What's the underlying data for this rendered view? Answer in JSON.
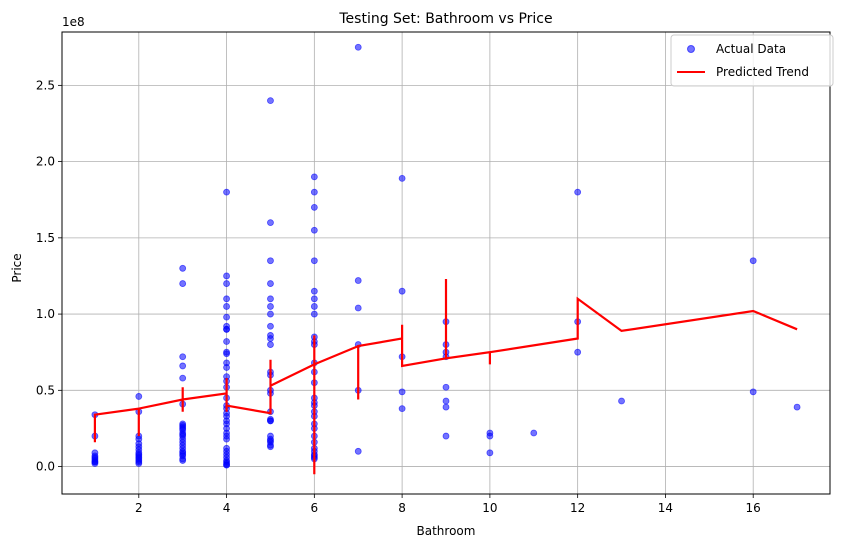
{
  "chart_data": {
    "type": "scatter",
    "title": "Testing Set: Bathroom vs Price",
    "xlabel": "Bathroom",
    "ylabel": "Price",
    "y_offset_label": "1e8",
    "xlim": [
      0.25,
      17.75
    ],
    "ylim": [
      -0.18,
      2.85
    ],
    "y_unit_multiplier": 100000000,
    "x_ticks": [
      2,
      4,
      6,
      8,
      10,
      12,
      14,
      16
    ],
    "x_tick_labels": [
      "2",
      "4",
      "6",
      "8",
      "10",
      "12",
      "14",
      "16"
    ],
    "y_ticks": [
      0.0,
      0.5,
      1.0,
      1.5,
      2.0,
      2.5
    ],
    "y_tick_labels": [
      "0.0",
      "0.5",
      "1.0",
      "1.5",
      "2.0",
      "2.5"
    ],
    "grid": true,
    "legend_position": "top-right",
    "colors": {
      "scatter": "#0000ff",
      "line": "#ff0000",
      "grid": "#b0b0b0"
    },
    "series": [
      {
        "name": "Actual Data",
        "kind": "scatter",
        "x": [
          1,
          1,
          1,
          1,
          1,
          1,
          1,
          1,
          1,
          1,
          2,
          2,
          2,
          2,
          2,
          2,
          2,
          2,
          2,
          2,
          2,
          2,
          2,
          2,
          2,
          3,
          3,
          3,
          3,
          3,
          3,
          3,
          3,
          3,
          3,
          3,
          3,
          3,
          3,
          3,
          3,
          3,
          3,
          3,
          3,
          3,
          3,
          3,
          3,
          4,
          4,
          4,
          4,
          4,
          4,
          4,
          4,
          4,
          4,
          4,
          4,
          4,
          4,
          4,
          4,
          4,
          4,
          4,
          4,
          4,
          4,
          4,
          4,
          4,
          4,
          4,
          4,
          4,
          4,
          4,
          4,
          4,
          4,
          4,
          4,
          4,
          5,
          5,
          5,
          5,
          5,
          5,
          5,
          5,
          5,
          5,
          5,
          5,
          5,
          5,
          5,
          5,
          5,
          5,
          5,
          5,
          5,
          5,
          5,
          5,
          5,
          6,
          6,
          6,
          6,
          6,
          6,
          6,
          6,
          6,
          6,
          6,
          6,
          6,
          6,
          6,
          6,
          6,
          6,
          6,
          6,
          6,
          6,
          6,
          6,
          6,
          6,
          6,
          6,
          6,
          6,
          7,
          7,
          7,
          7,
          7,
          7,
          8,
          8,
          8,
          8,
          8,
          9,
          9,
          9,
          9,
          9,
          9,
          9,
          9,
          10,
          10,
          10,
          11,
          12,
          12,
          12,
          13,
          16,
          16,
          17
        ],
        "y": [
          0.34,
          0.2,
          0.09,
          0.07,
          0.06,
          0.05,
          0.04,
          0.03,
          0.03,
          0.02,
          0.46,
          0.36,
          0.2,
          0.18,
          0.15,
          0.13,
          0.11,
          0.09,
          0.08,
          0.07,
          0.06,
          0.05,
          0.04,
          0.03,
          0.02,
          1.3,
          1.2,
          0.72,
          0.66,
          0.58,
          0.41,
          0.28,
          0.27,
          0.26,
          0.25,
          0.24,
          0.22,
          0.21,
          0.2,
          0.18,
          0.16,
          0.14,
          0.12,
          0.1,
          0.09,
          0.08,
          0.07,
          0.05,
          0.04,
          1.8,
          1.25,
          1.2,
          1.1,
          1.05,
          0.98,
          0.92,
          0.9,
          0.9,
          0.82,
          0.75,
          0.74,
          0.68,
          0.65,
          0.59,
          0.56,
          0.52,
          0.45,
          0.4,
          0.38,
          0.35,
          0.33,
          0.3,
          0.28,
          0.25,
          0.22,
          0.2,
          0.18,
          0.12,
          0.1,
          0.08,
          0.06,
          0.04,
          0.03,
          0.02,
          0.01,
          0.01,
          2.4,
          1.6,
          1.35,
          1.2,
          1.1,
          1.05,
          1.0,
          0.92,
          0.86,
          0.84,
          0.8,
          0.62,
          0.6,
          0.5,
          0.48,
          0.36,
          0.31,
          0.3,
          0.3,
          0.2,
          0.18,
          0.17,
          0.16,
          0.14,
          0.13,
          1.9,
          1.8,
          1.7,
          1.55,
          1.35,
          1.15,
          1.1,
          1.05,
          1.0,
          0.85,
          0.82,
          0.8,
          0.68,
          0.62,
          0.55,
          0.45,
          0.42,
          0.4,
          0.36,
          0.33,
          0.28,
          0.25,
          0.2,
          0.16,
          0.12,
          0.1,
          0.08,
          0.07,
          0.06,
          0.05,
          2.75,
          1.22,
          1.04,
          0.8,
          0.5,
          0.1,
          1.89,
          1.15,
          0.72,
          0.49,
          0.38,
          0.95,
          0.8,
          0.75,
          0.72,
          0.52,
          0.43,
          0.39,
          0.2,
          0.22,
          0.2,
          0.09,
          0.22,
          1.8,
          0.95,
          0.75,
          0.43,
          1.35,
          0.49,
          0.39
        ]
      },
      {
        "name": "Predicted Trend",
        "kind": "line",
        "x": [
          1,
          1,
          1,
          1,
          2,
          2,
          2,
          2,
          2,
          3,
          3,
          3,
          3,
          3,
          4,
          4,
          4,
          4,
          4,
          4,
          5,
          5,
          5,
          5,
          5,
          6,
          6,
          6,
          6,
          6,
          6,
          7,
          7,
          7,
          7,
          7,
          8,
          8,
          8,
          8,
          9,
          9,
          9,
          9,
          9,
          10,
          10,
          10,
          12,
          12,
          12,
          12,
          13,
          16,
          17
        ],
        "y": [
          0.16,
          0.23,
          0.28,
          0.34,
          0.38,
          0.25,
          0.2,
          0.3,
          0.38,
          0.44,
          0.36,
          0.4,
          0.52,
          0.44,
          0.48,
          0.36,
          0.43,
          0.46,
          0.58,
          0.4,
          0.35,
          0.55,
          0.7,
          0.6,
          0.53,
          0.67,
          -0.05,
          0.4,
          0.86,
          0.75,
          0.67,
          0.79,
          0.44,
          0.64,
          0.55,
          0.79,
          0.84,
          0.93,
          0.72,
          0.66,
          0.71,
          1.23,
          1.0,
          0.84,
          0.71,
          0.75,
          0.67,
          0.75,
          0.84,
          0.97,
          0.84,
          1.1,
          0.89,
          1.02,
          0.9
        ]
      }
    ]
  }
}
